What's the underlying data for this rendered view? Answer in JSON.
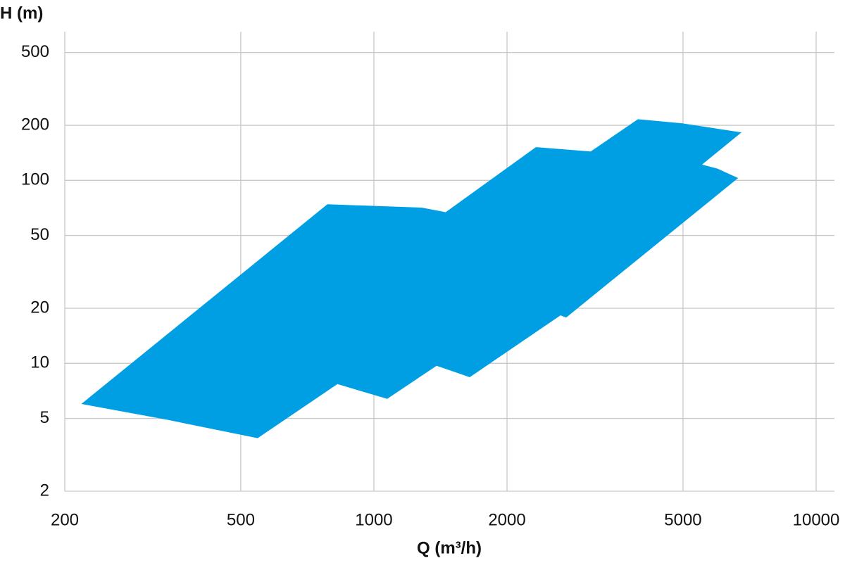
{
  "chart_data": {
    "type": "area",
    "xlabel": "Q (m³/h)",
    "ylabel": "H (m)",
    "xscale": "log",
    "yscale": "log",
    "grid": true,
    "xlim": [
      200,
      11000
    ],
    "ylim": [
      2,
      650
    ],
    "xticks": [
      200,
      500,
      1000,
      2000,
      5000,
      10000
    ],
    "yticks": [
      2,
      5,
      10,
      20,
      50,
      100,
      200,
      500
    ],
    "color": "#009fe3",
    "x": [
      218,
      785,
      1283,
      1453,
      2324,
      3092,
      3954,
      4981,
      6780,
      5521,
      5984,
      6661,
      2721,
      2642,
      1647,
      1386,
      1072,
      827,
      546,
      343
    ],
    "values": [
      6.0,
      74,
      71,
      67,
      152,
      144,
      216,
      205,
      183,
      122,
      116,
      103,
      17.8,
      18.3,
      8.4,
      9.7,
      6.4,
      7.7,
      3.9,
      4.9
    ]
  }
}
